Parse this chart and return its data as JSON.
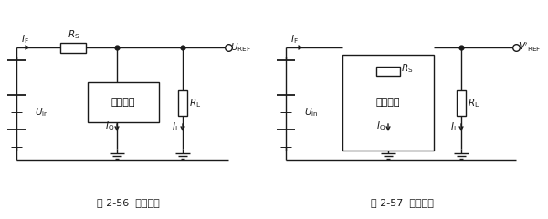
{
  "fig_width": 6.0,
  "fig_height": 2.4,
  "dpi": 100,
  "bg_color": "#ffffff",
  "line_color": "#1a1a1a",
  "line_width": 1.0,
  "caption1": "图 2-56  并联基准",
  "caption2": "图 2-57  串联基准",
  "label_parallel": "并联基准",
  "label_series": "串联基准"
}
